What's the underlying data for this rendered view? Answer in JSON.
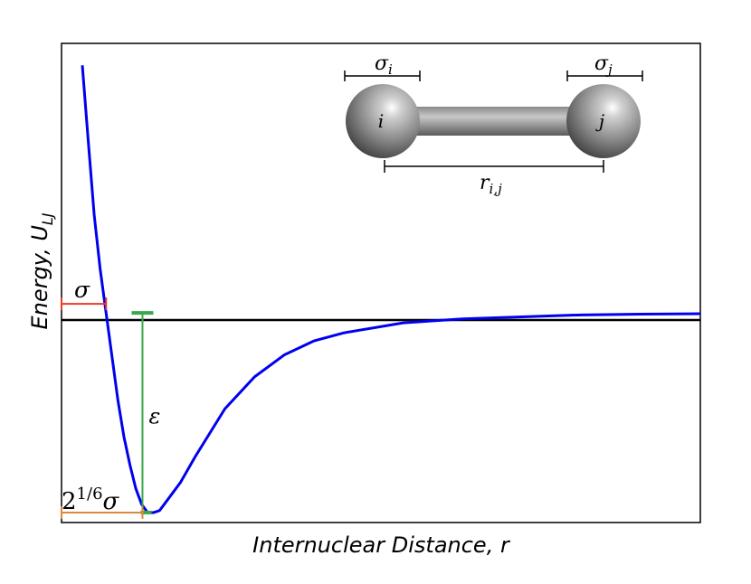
{
  "chart_data": {
    "type": "line",
    "title": "",
    "xlabel": "Internuclear Distance, r",
    "ylabel": "Energy, U",
    "ylabel_subscript": "LJ",
    "grid": false,
    "legend": "none",
    "xlim": [
      0.85,
      3.0
    ],
    "ylim": [
      -1.05,
      1.35
    ],
    "parameters": {
      "epsilon": 1,
      "sigma": 1
    },
    "series": [
      {
        "color": "#0000ee",
        "x": [
          0.92,
          0.94,
          0.96,
          0.98,
          1.0,
          1.02,
          1.04,
          1.06,
          1.08,
          1.1,
          1.12,
          1.14,
          1.16,
          1.18,
          1.2,
          1.25,
          1.3,
          1.35,
          1.4,
          1.5,
          1.6,
          1.7,
          1.8,
          2.0,
          2.2,
          2.4,
          2.6,
          2.8,
          3.0
        ],
        "y": [
          1.24,
          0.86,
          0.49,
          0.22,
          0.0,
          -0.22,
          -0.44,
          -0.62,
          -0.76,
          -0.88,
          -0.96,
          -1.0,
          -1.0,
          -0.99,
          -0.95,
          -0.85,
          -0.72,
          -0.6,
          -0.48,
          -0.32,
          -0.21,
          -0.14,
          -0.1,
          -0.05,
          -0.03,
          -0.02,
          -0.01,
          -0.006,
          -0.004
        ]
      }
    ],
    "annotations": {
      "sigma": {
        "base": "σ",
        "color": "#e8392b"
      },
      "epsilon": {
        "base": "ε",
        "color": "#3aa84a"
      },
      "r_min": {
        "base": "2",
        "exponent": "1/6",
        "suffix": "σ",
        "color": "#d98a3a"
      }
    }
  },
  "diagram": {
    "atom_i_label": "i",
    "atom_j_label": "j",
    "sigma_i": {
      "base": "σ",
      "sub": "i"
    },
    "sigma_j": {
      "base": "σ",
      "sub": "j"
    },
    "distance": {
      "base": "r",
      "sub": "i,j"
    }
  },
  "colors": {
    "curve": "#0000ee",
    "sigma": "#e8392b",
    "epsilon": "#3aa84a",
    "rmin": "#d98a3a",
    "atom": "#8f8f8f"
  }
}
